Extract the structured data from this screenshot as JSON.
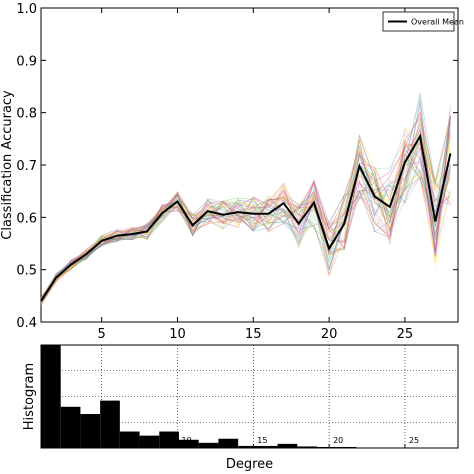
{
  "chart_data": [
    {
      "type": "line",
      "xlabel": "",
      "ylabel": "Classification Accuracy",
      "xlim": [
        1,
        28.5
      ],
      "ylim": [
        0.4,
        1.0
      ],
      "xticks": [
        5,
        10,
        15,
        20,
        25
      ],
      "yticks": [
        0.4,
        0.5,
        0.6,
        0.7,
        0.8,
        0.9,
        1.0
      ],
      "ytick_labels": [
        "0.4",
        "0.5",
        "0.6",
        "0.7",
        "0.8",
        "0.9",
        "1.0"
      ],
      "grid": false,
      "legend": {
        "position": "top-right",
        "entries": [
          "Overall Mean"
        ]
      },
      "x": [
        1,
        2,
        3,
        4,
        5,
        6,
        7,
        8,
        9,
        10,
        11,
        12,
        13,
        14,
        15,
        16,
        17,
        18,
        19,
        20,
        21,
        22,
        23,
        24,
        25,
        26,
        27,
        28
      ],
      "series": [
        {
          "name": "Overall Mean",
          "color": "#000000",
          "values": [
            0.44,
            0.485,
            0.51,
            0.53,
            0.555,
            0.565,
            0.568,
            0.573,
            0.608,
            0.63,
            0.585,
            0.612,
            0.605,
            0.61,
            0.607,
            0.607,
            0.627,
            0.588,
            0.628,
            0.54,
            0.588,
            0.698,
            0.64,
            0.62,
            0.705,
            0.755,
            0.592,
            0.722
          ]
        }
      ],
      "background_series": {
        "count": 40,
        "note_colors": [
          "#e41a1c",
          "#377eb8",
          "#4daf4a",
          "#984ea3",
          "#ff7f00",
          "#a65628",
          "#f781bf",
          "#66c2a5",
          "#8da0cb",
          "#e78ac3",
          "#a6d854",
          "#ffd92f"
        ]
      }
    },
    {
      "type": "bar",
      "xlabel": "Degree",
      "ylabel": "Histogram",
      "xlim": [
        1,
        28.5
      ],
      "xticks": [
        5,
        10,
        15,
        20,
        25
      ],
      "grid": true,
      "bin_edges": [
        1,
        2.3,
        3.6,
        4.9,
        6.2,
        7.5,
        8.8,
        10.1,
        11.4,
        12.7,
        14.0,
        15.3,
        16.6,
        17.9,
        19.2,
        20.5,
        21.8,
        23.1,
        24.4,
        25.7,
        27.0
      ],
      "values": [
        1.0,
        0.4,
        0.33,
        0.46,
        0.16,
        0.12,
        0.16,
        0.08,
        0.05,
        0.09,
        0.02,
        0.02,
        0.04,
        0.015,
        0.01,
        0.01,
        0.005,
        0.005,
        0.005,
        0.0
      ]
    }
  ]
}
